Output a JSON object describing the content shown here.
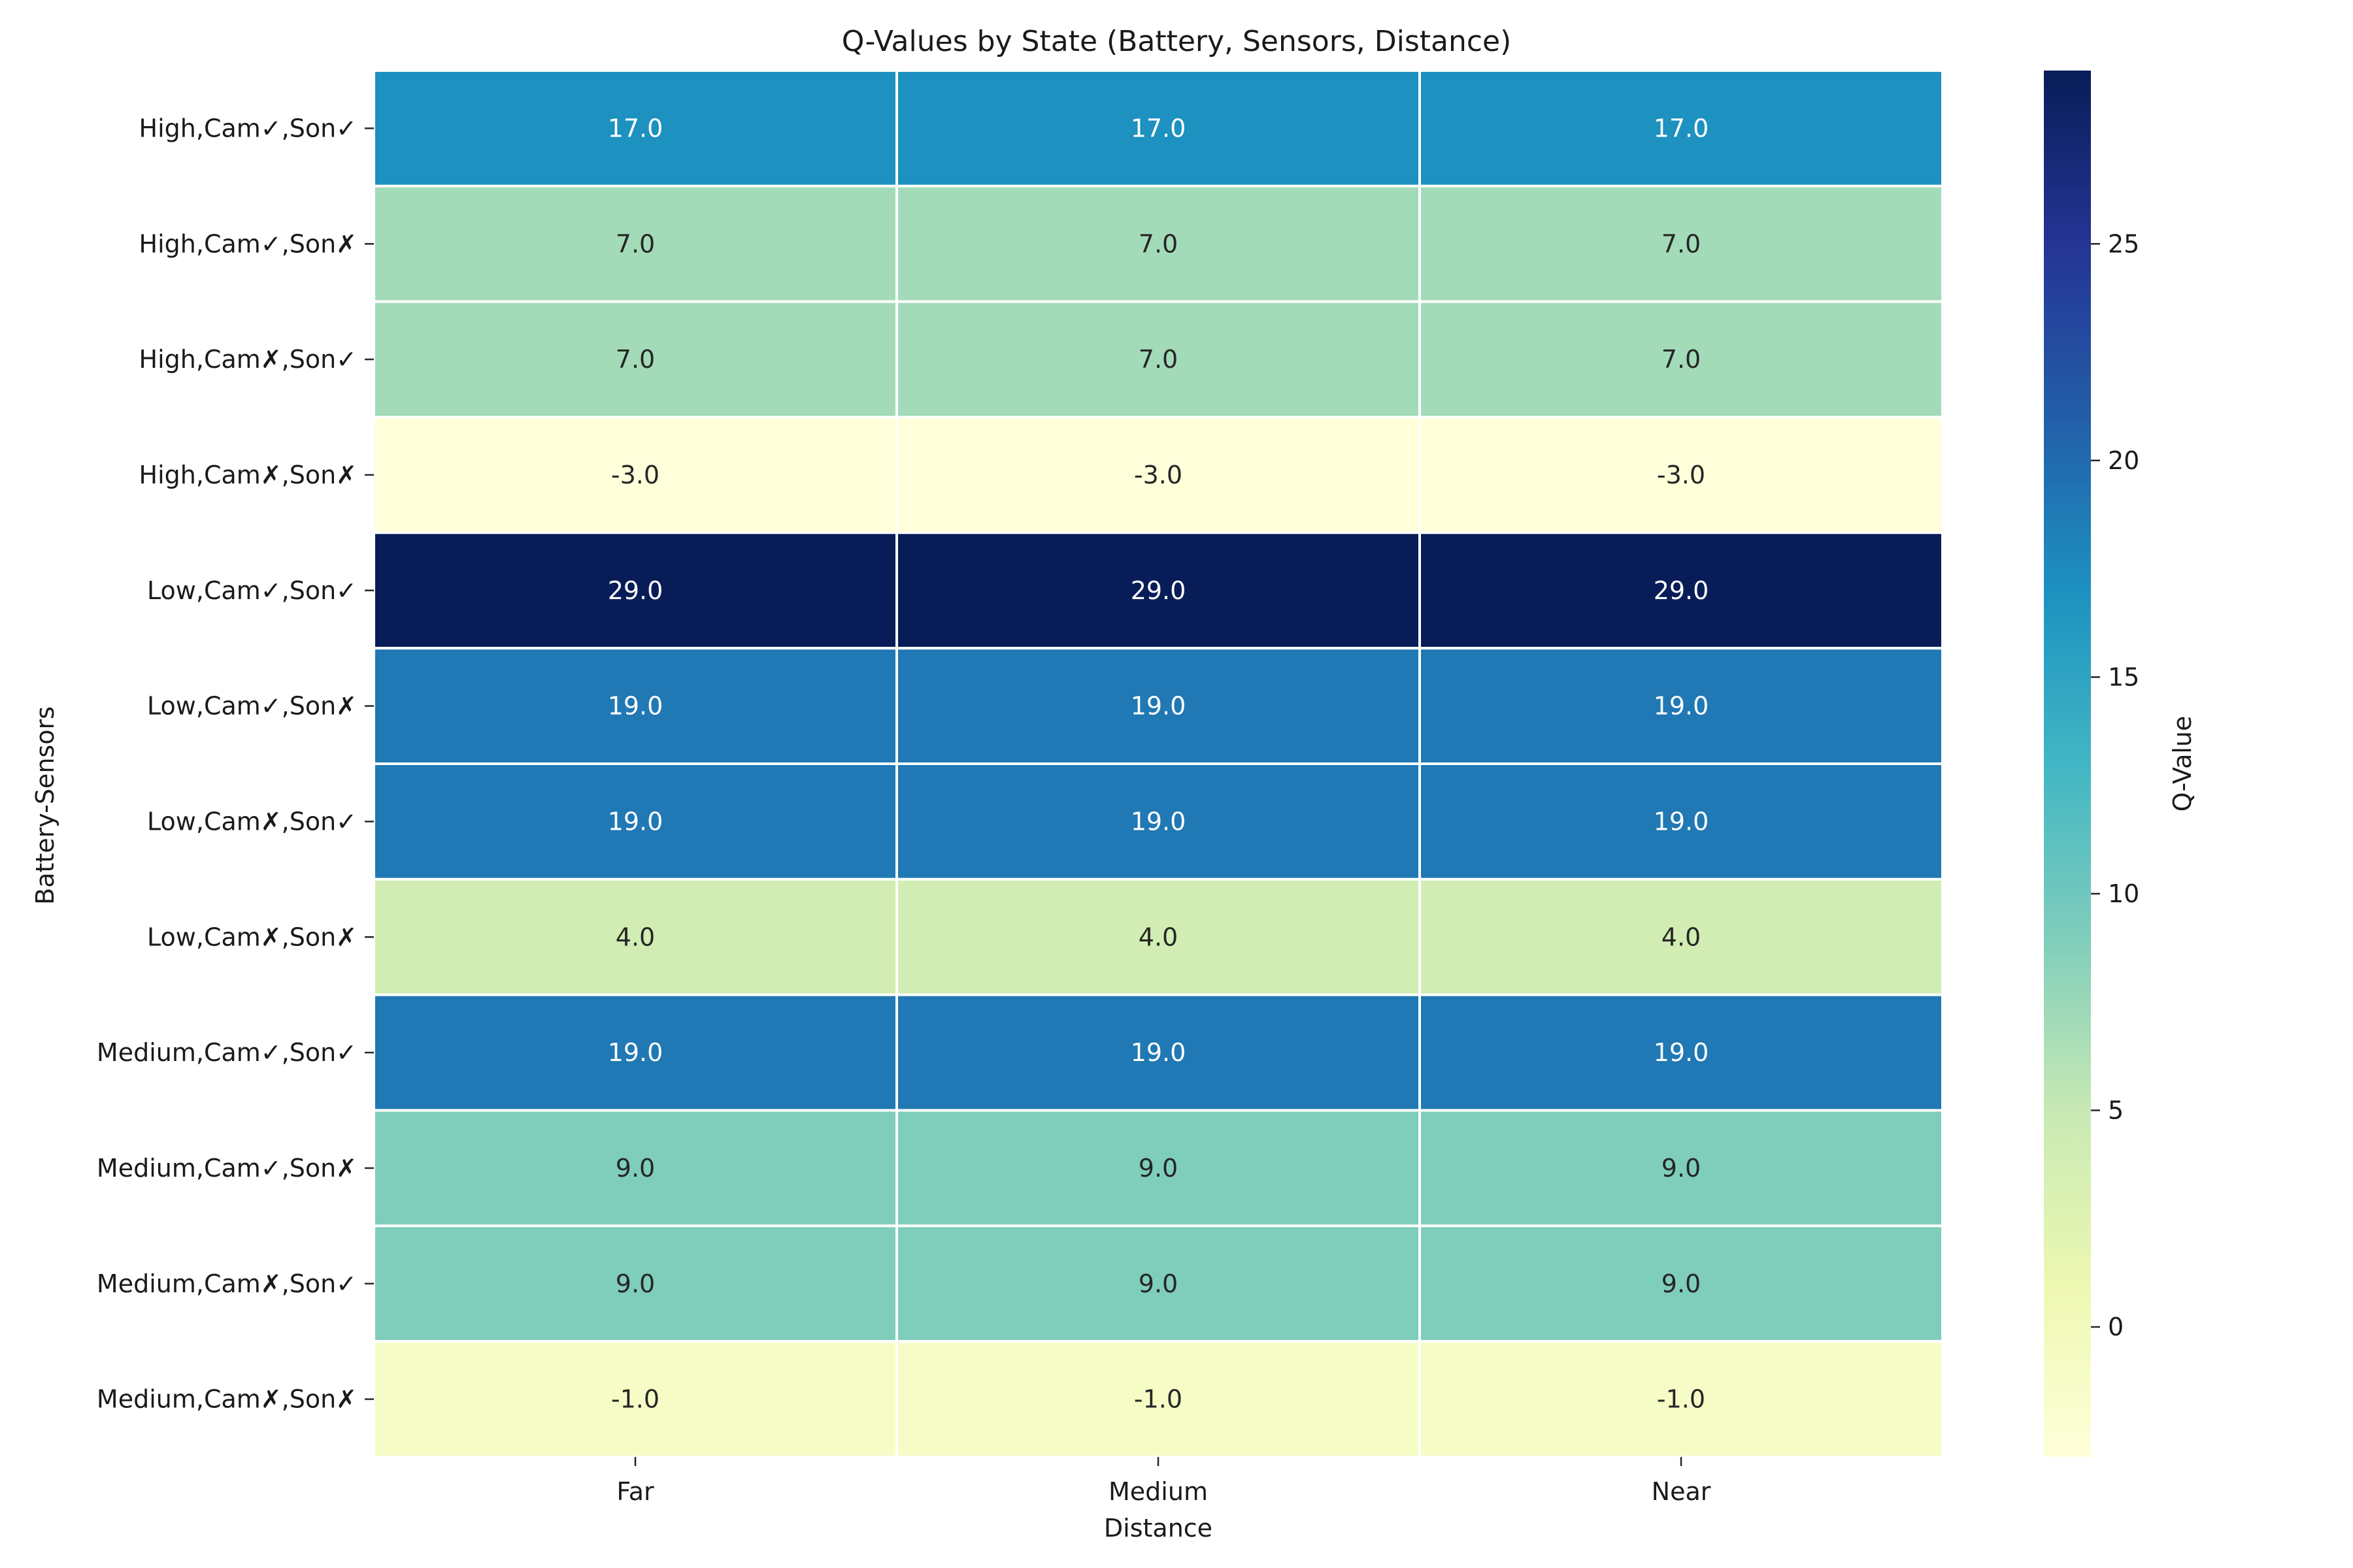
{
  "chart_data": {
    "type": "heatmap",
    "title": "Q-Values by State (Battery, Sensors, Distance)",
    "xlabel": "Distance",
    "ylabel": "Battery-Sensors",
    "colorbar_label": "Q-Value",
    "x_categories": [
      "Far",
      "Medium",
      "Near"
    ],
    "y_categories": [
      "High,Cam✓,Son✓",
      "High,Cam✓,Son✗",
      "High,Cam✗,Son✓",
      "High,Cam✗,Son✗",
      "Low,Cam✓,Son✓",
      "Low,Cam✓,Son✗",
      "Low,Cam✗,Son✓",
      "Low,Cam✗,Son✗",
      "Medium,Cam✓,Son✓",
      "Medium,Cam✓,Son✗",
      "Medium,Cam✗,Son✓",
      "Medium,Cam✗,Son✗"
    ],
    "values": [
      [
        17.0,
        17.0,
        17.0
      ],
      [
        7.0,
        7.0,
        7.0
      ],
      [
        7.0,
        7.0,
        7.0
      ],
      [
        -3.0,
        -3.0,
        -3.0
      ],
      [
        29.0,
        29.0,
        29.0
      ],
      [
        19.0,
        19.0,
        19.0
      ],
      [
        19.0,
        19.0,
        19.0
      ],
      [
        4.0,
        4.0,
        4.0
      ],
      [
        19.0,
        19.0,
        19.0
      ],
      [
        9.0,
        9.0,
        9.0
      ],
      [
        9.0,
        9.0,
        9.0
      ],
      [
        -1.0,
        -1.0,
        -1.0
      ]
    ],
    "value_format": "0.0",
    "colormap": "YlGnBu",
    "vmin": -3.0,
    "vmax": 29.0,
    "colorbar_ticks": [
      0,
      5,
      10,
      15,
      20,
      25
    ],
    "colorbar_tick_labels": [
      "0",
      "5",
      "10",
      "15",
      "20",
      "25"
    ],
    "colorbar_placement": "right",
    "cell_border_color": "#ffffff"
  }
}
